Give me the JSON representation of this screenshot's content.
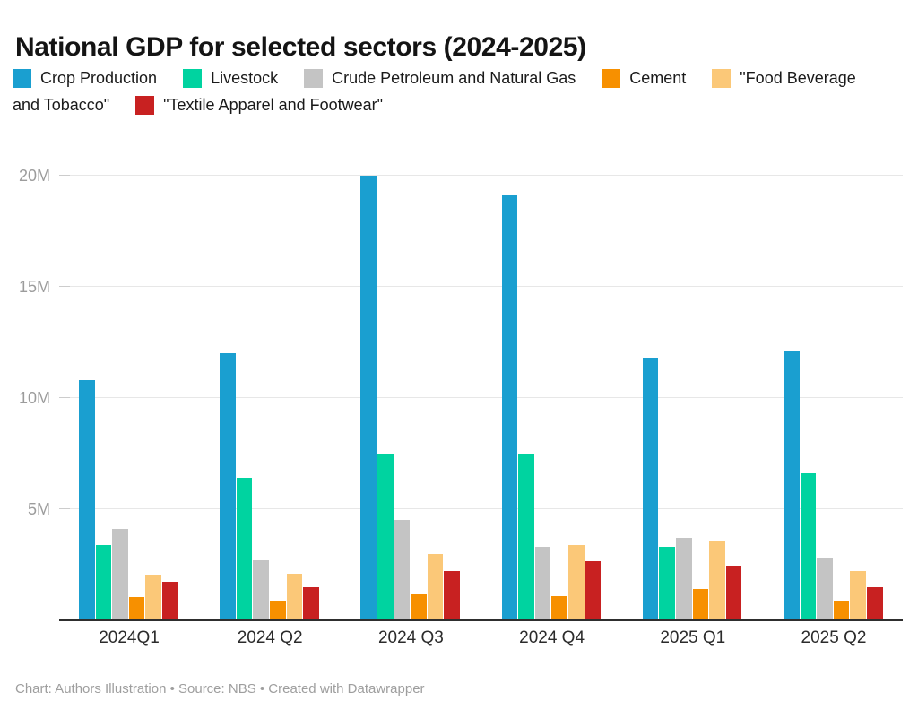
{
  "title": "National GDP for selected sectors (2024-2025)",
  "legend": {
    "rows": [
      {
        "prefix": "",
        "items": [
          {
            "name": "crop-production",
            "color": "#1A9FD0",
            "label": "Crop Production"
          },
          {
            "name": "livestock",
            "color": "#00D3A0",
            "label": "Livestock"
          },
          {
            "name": "crude-petroleum-and-natural-gas",
            "color": "#C4C4C4",
            "label": "Crude Petroleum and Natural Gas"
          },
          {
            "name": "cement",
            "color": "#F79000",
            "label": "Cement"
          },
          {
            "name": "food-beverage-and-tobacco",
            "color": "#FBC878",
            "label": "\"Food Beverage"
          }
        ]
      },
      {
        "prefix": "and Tobacco\"",
        "items": [
          {
            "name": "textile-apparel-and-footwear",
            "color": "#C82121",
            "label": "\"Textile Apparel and Footwear\""
          }
        ]
      }
    ]
  },
  "chart_data": {
    "type": "bar",
    "title": "National GDP for selected sectors (2024-2025)",
    "categories": [
      "2024Q1",
      "2024 Q2",
      "2024 Q3",
      "2024 Q4",
      "2025 Q1",
      "2025 Q2"
    ],
    "series": [
      {
        "name": "Crop Production",
        "color": "#1A9FD0",
        "values": [
          10.8,
          12.0,
          20.0,
          19.1,
          11.8,
          12.1
        ]
      },
      {
        "name": "Livestock",
        "color": "#00D3A0",
        "values": [
          3.4,
          6.4,
          7.5,
          7.5,
          3.3,
          6.6
        ]
      },
      {
        "name": "Crude Petroleum and Natural Gas",
        "color": "#C4C4C4",
        "values": [
          4.1,
          2.7,
          4.5,
          3.3,
          3.7,
          2.8
        ]
      },
      {
        "name": "Cement",
        "color": "#F79000",
        "values": [
          1.05,
          0.85,
          1.15,
          1.1,
          1.4,
          0.9
        ]
      },
      {
        "name": "\"Food Beverage and Tobacco\"",
        "color": "#FBC878",
        "values": [
          2.05,
          2.1,
          3.0,
          3.4,
          3.55,
          2.2
        ]
      },
      {
        "name": "\"Textile Apparel and Footwear\"",
        "color": "#C82121",
        "values": [
          1.75,
          1.5,
          2.2,
          2.65,
          2.45,
          1.5
        ]
      }
    ],
    "xlabel": "",
    "ylabel": "",
    "y_ticks": [
      {
        "label": "5M",
        "value": 5
      },
      {
        "label": "10M",
        "value": 10
      },
      {
        "label": "15M",
        "value": 15
      },
      {
        "label": "20M",
        "value": 20
      }
    ],
    "ylim": [
      0,
      21.2
    ],
    "grid": true,
    "legend_position": "top"
  },
  "footer": {
    "text": "Chart: Authors Illustration • Source: NBS • Created with Datawrapper"
  }
}
